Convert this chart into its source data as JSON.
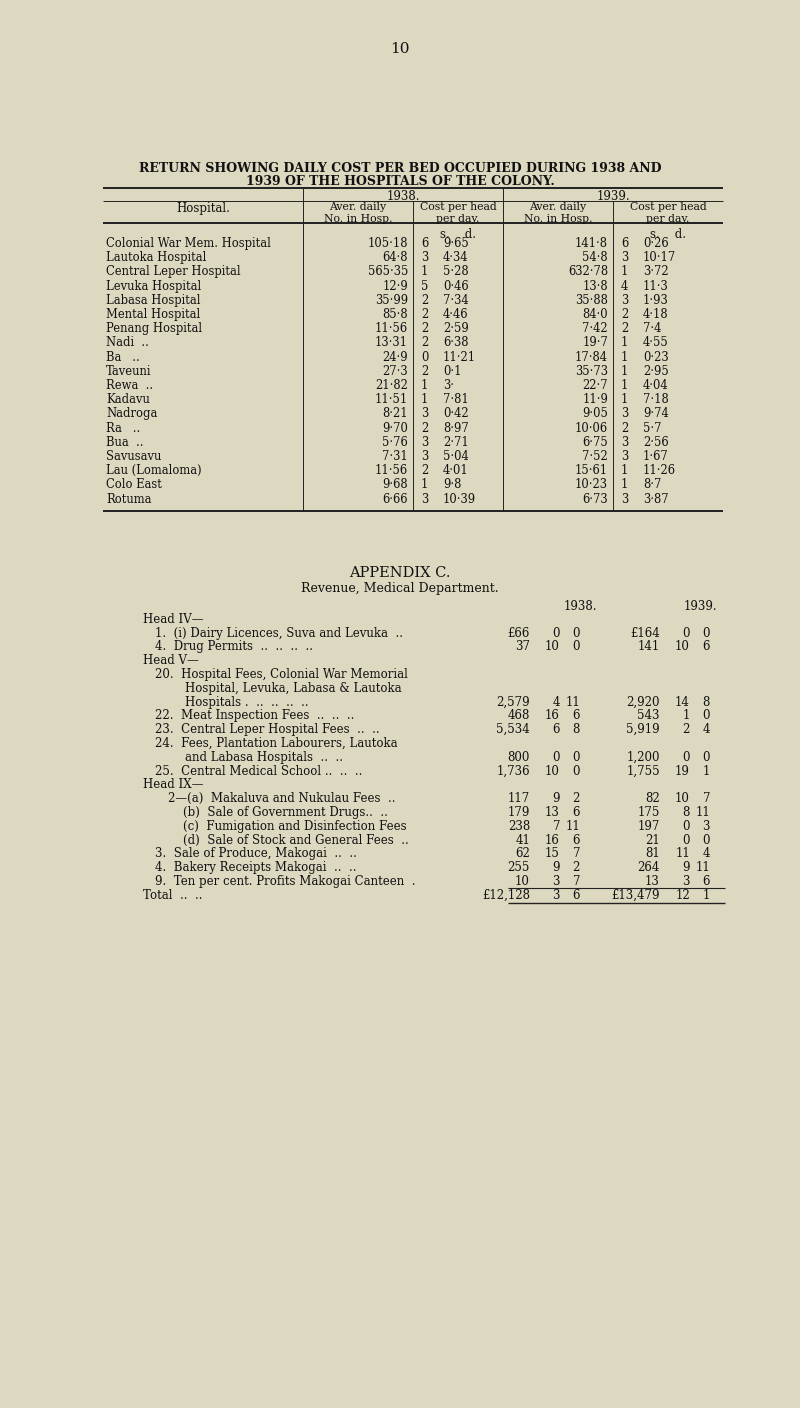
{
  "page_number": "10",
  "bg_color": "#ddd8c0",
  "title1": "RETURN SHOWING DAILY COST PER BED OCCUPIED DURING 1938 AND",
  "title2": "1939 OF THE HOSPITALS OF THE COLONY.",
  "table1_rows": [
    [
      "Colonial War Mem. Hospital",
      "105·18",
      "6",
      "9·65",
      "141·8",
      "6",
      "0·26"
    ],
    [
      "Lautoka Hospital",
      "64·8",
      "3",
      "4·34",
      "54·8",
      "3",
      "10·17"
    ],
    [
      "Central Leper Hospital",
      "565·35",
      "1",
      "5·28",
      "632·78",
      "1",
      "3·72"
    ],
    [
      "Levuka Hospital",
      "12·9",
      "5",
      "0·46",
      "13·8",
      "4",
      "11·3"
    ],
    [
      "Labasa Hospital",
      "35·99",
      "2",
      "7·34",
      "35·88",
      "3",
      "1·93"
    ],
    [
      "Mental Hospital",
      "85·8",
      "2",
      "4·46",
      "84·0",
      "2",
      "4·18"
    ],
    [
      "Penang Hospital",
      "11·56",
      "2",
      "2·59",
      "7·42",
      "2",
      "7·4"
    ],
    [
      "Nadi  ..",
      "13·31",
      "2",
      "6·38",
      "19·7",
      "1",
      "4·55"
    ],
    [
      "Ba   ..",
      "24·9",
      "0",
      "11·21",
      "17·84",
      "1",
      "0·23"
    ],
    [
      "Taveuni",
      "27·3",
      "2",
      "0·1",
      "35·73",
      "1",
      "2·95"
    ],
    [
      "Rewa  ..",
      "21·82",
      "1",
      "3·",
      "22·7",
      "1",
      "4·04"
    ],
    [
      "Kadavu",
      "11·51",
      "1",
      "7·81",
      "11·9",
      "1",
      "7·18"
    ],
    [
      "Nadroga",
      "8·21",
      "3",
      "0·42",
      "9·05",
      "3",
      "9·74"
    ],
    [
      "Ra   ..",
      "9·70",
      "2",
      "8·97",
      "10·06",
      "2",
      "5·7"
    ],
    [
      "Bua  ..",
      "5·76",
      "3",
      "2·71",
      "6·75",
      "3",
      "2·56"
    ],
    [
      "Savusavu",
      "7·31",
      "3",
      "5·04",
      "7·52",
      "3",
      "1·67"
    ],
    [
      "Lau (Lomaloma)",
      "11·56",
      "2",
      "4·01",
      "15·61",
      "1",
      "11·26"
    ],
    [
      "Colo East",
      "9·68",
      "1",
      "9·8",
      "10·23",
      "1",
      "8·7"
    ],
    [
      "Rotuma",
      "6·66",
      "3",
      "10·39",
      "6·73",
      "3",
      "3·87"
    ]
  ],
  "appendix_title": "APPENDIX C.",
  "appendix_subtitle": "Revenue, Medical Department.",
  "col_v1": [
    530,
    560,
    580
  ],
  "col_v2": [
    660,
    690,
    710
  ],
  "appendix_data": [
    {
      "label": "Head IV—",
      "indent": 0,
      "v1": null,
      "v2": null,
      "is_head": true,
      "total_line": false,
      "is_total": false
    },
    {
      "label": "1.  (i) Dairy Licences, Suva and Levuka  ..",
      "indent": 1,
      "v1": [
        "£66",
        "0",
        "0"
      ],
      "v2": [
        "£164",
        "0",
        "0"
      ],
      "is_head": false,
      "total_line": false,
      "is_total": false
    },
    {
      "label": "4.  Drug Permits  ..  ..  ..  ..",
      "indent": 1,
      "v1": [
        "37",
        "10",
        "0"
      ],
      "v2": [
        "141",
        "10",
        "6"
      ],
      "is_head": false,
      "total_line": false,
      "is_total": false
    },
    {
      "label": "Head V—",
      "indent": 0,
      "v1": null,
      "v2": null,
      "is_head": true,
      "total_line": false,
      "is_total": false
    },
    {
      "label": "20.  Hospital Fees, Colonial War Memorial",
      "indent": 1,
      "v1": null,
      "v2": null,
      "is_head": false,
      "total_line": false,
      "is_total": false
    },
    {
      "label": "        Hospital, Levuka, Labasa & Lautoka",
      "indent": 1,
      "v1": null,
      "v2": null,
      "is_head": false,
      "total_line": false,
      "is_total": false
    },
    {
      "label": "        Hospitals .  ..  ..  ..  ..",
      "indent": 1,
      "v1": [
        "2,579",
        "4",
        "11"
      ],
      "v2": [
        "2,920",
        "14",
        "8"
      ],
      "is_head": false,
      "total_line": false,
      "is_total": false
    },
    {
      "label": "22.  Meat Inspection Fees  ..  ..  ..",
      "indent": 1,
      "v1": [
        "468",
        "16",
        "6"
      ],
      "v2": [
        "543",
        "1",
        "0"
      ],
      "is_head": false,
      "total_line": false,
      "is_total": false
    },
    {
      "label": "23.  Central Leper Hospital Fees  ..  ..",
      "indent": 1,
      "v1": [
        "5,534",
        "6",
        "8"
      ],
      "v2": [
        "5,919",
        "2",
        "4"
      ],
      "is_head": false,
      "total_line": false,
      "is_total": false
    },
    {
      "label": "24.  Fees, Plantation Labourers, Lautoka",
      "indent": 1,
      "v1": null,
      "v2": null,
      "is_head": false,
      "total_line": false,
      "is_total": false
    },
    {
      "label": "        and Labasa Hospitals  ..  ..",
      "indent": 1,
      "v1": [
        "800",
        "0",
        "0"
      ],
      "v2": [
        "1,200",
        "0",
        "0"
      ],
      "is_head": false,
      "total_line": false,
      "is_total": false
    },
    {
      "label": "25.  Central Medical School ..  ..  ..",
      "indent": 1,
      "v1": [
        "1,736",
        "10",
        "0"
      ],
      "v2": [
        "1,755",
        "19",
        "1"
      ],
      "is_head": false,
      "total_line": false,
      "is_total": false
    },
    {
      "label": "Head IX—",
      "indent": 0,
      "v1": null,
      "v2": null,
      "is_head": true,
      "total_line": false,
      "is_total": false
    },
    {
      "label": "2—(a)  Makaluva and Nukulau Fees  ..",
      "indent": 2,
      "v1": [
        "117",
        "9",
        "2"
      ],
      "v2": [
        "82",
        "10",
        "7"
      ],
      "is_head": false,
      "total_line": false,
      "is_total": false
    },
    {
      "label": "    (b)  Sale of Government Drugs..  ..",
      "indent": 2,
      "v1": [
        "179",
        "13",
        "6"
      ],
      "v2": [
        "175",
        "8",
        "11"
      ],
      "is_head": false,
      "total_line": false,
      "is_total": false
    },
    {
      "label": "    (c)  Fumigation and Disinfection Fees",
      "indent": 2,
      "v1": [
        "238",
        "7",
        "11"
      ],
      "v2": [
        "197",
        "0",
        "3"
      ],
      "is_head": false,
      "total_line": false,
      "is_total": false
    },
    {
      "label": "    (d)  Sale of Stock and General Fees  ..",
      "indent": 2,
      "v1": [
        "41",
        "16",
        "6"
      ],
      "v2": [
        "21",
        "0",
        "0"
      ],
      "is_head": false,
      "total_line": false,
      "is_total": false
    },
    {
      "label": "3.  Sale of Produce, Makogai  ..  ..",
      "indent": 1,
      "v1": [
        "62",
        "15",
        "7"
      ],
      "v2": [
        "81",
        "11",
        "4"
      ],
      "is_head": false,
      "total_line": false,
      "is_total": false
    },
    {
      "label": "4.  Bakery Receipts Makogai  ..  ..",
      "indent": 1,
      "v1": [
        "255",
        "9",
        "2"
      ],
      "v2": [
        "264",
        "9",
        "11"
      ],
      "is_head": false,
      "total_line": false,
      "is_total": false
    },
    {
      "label": "9.  Ten per cent. Profits Makogai Canteen  .",
      "indent": 1,
      "v1": [
        "10",
        "3",
        "7"
      ],
      "v2": [
        "13",
        "3",
        "6"
      ],
      "is_head": false,
      "total_line": true,
      "is_total": false
    },
    {
      "label": "Total  ..  ..",
      "indent": 0,
      "v1": [
        "£12,128",
        "3",
        "6"
      ],
      "v2": [
        "£13,479",
        "12",
        "1"
      ],
      "is_head": false,
      "total_line": false,
      "is_total": true
    }
  ]
}
